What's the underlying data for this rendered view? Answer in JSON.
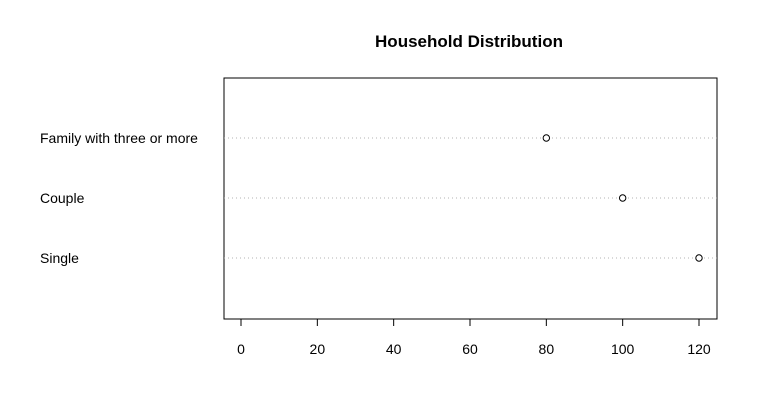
{
  "chart_data": {
    "type": "scatter",
    "title": "Household Distribution",
    "xlabel": "",
    "ylabel": "",
    "categories": [
      "Family with three or more",
      "Couple",
      "Single"
    ],
    "values": [
      80,
      100,
      120
    ],
    "x_ticks": [
      0,
      20,
      40,
      60,
      80,
      100,
      120
    ],
    "xlim": [
      -5,
      125
    ],
    "grid": "dotted horizontal guide per category",
    "legend": "none",
    "marker": "open-circle",
    "colors": {
      "point_stroke": "#000000",
      "guide": "#b3b3b3",
      "axis": "#000000"
    }
  }
}
